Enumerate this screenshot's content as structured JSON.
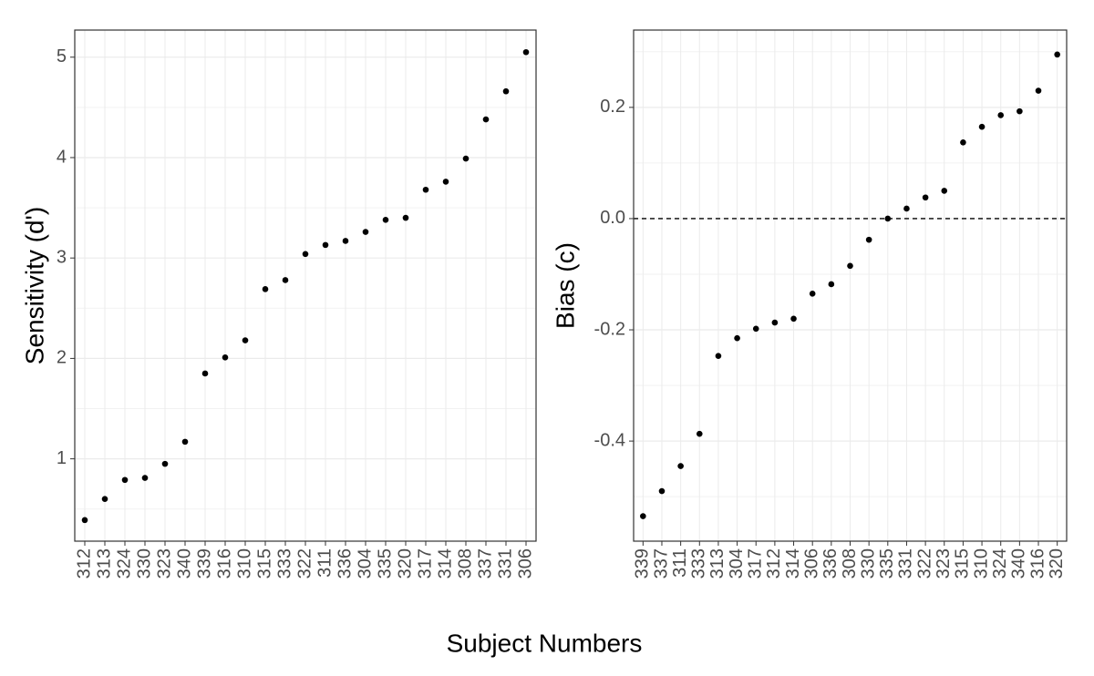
{
  "x_label": "Subject Numbers",
  "chart_data": [
    {
      "type": "dot",
      "y_label": "Sensitivity (d')",
      "color": "#000000",
      "grid": true,
      "categories": [
        "312",
        "313",
        "324",
        "330",
        "323",
        "340",
        "339",
        "316",
        "310",
        "315",
        "333",
        "322",
        "311",
        "336",
        "304",
        "335",
        "320",
        "317",
        "314",
        "308",
        "337",
        "331",
        "306"
      ],
      "values": [
        0.39,
        0.6,
        0.79,
        0.81,
        0.95,
        1.17,
        1.85,
        2.01,
        2.18,
        2.69,
        2.78,
        3.04,
        3.13,
        3.17,
        3.26,
        3.38,
        3.4,
        3.68,
        3.76,
        3.99,
        4.38,
        4.66,
        5.05
      ],
      "ylim": [
        0.18,
        5.27
      ],
      "yticks": [
        1,
        2,
        3,
        4,
        5
      ]
    },
    {
      "type": "dot",
      "y_label": "Bias (c)",
      "color": "#000000",
      "grid": true,
      "hline": 0,
      "categories": [
        "339",
        "337",
        "311",
        "333",
        "313",
        "304",
        "317",
        "312",
        "314",
        "306",
        "336",
        "308",
        "330",
        "335",
        "331",
        "322",
        "323",
        "315",
        "310",
        "324",
        "340",
        "316",
        "320"
      ],
      "values": [
        -0.535,
        -0.49,
        -0.445,
        -0.387,
        -0.247,
        -0.215,
        -0.198,
        -0.187,
        -0.18,
        -0.135,
        -0.118,
        -0.085,
        -0.038,
        0.0,
        0.018,
        0.038,
        0.05,
        0.137,
        0.165,
        0.186,
        0.193,
        0.23,
        0.295
      ],
      "ylim": [
        -0.58,
        0.339
      ],
      "yticks": [
        -0.4,
        -0.2,
        {
          "value": 0,
          "label": "0.0"
        },
        0.2
      ]
    }
  ]
}
